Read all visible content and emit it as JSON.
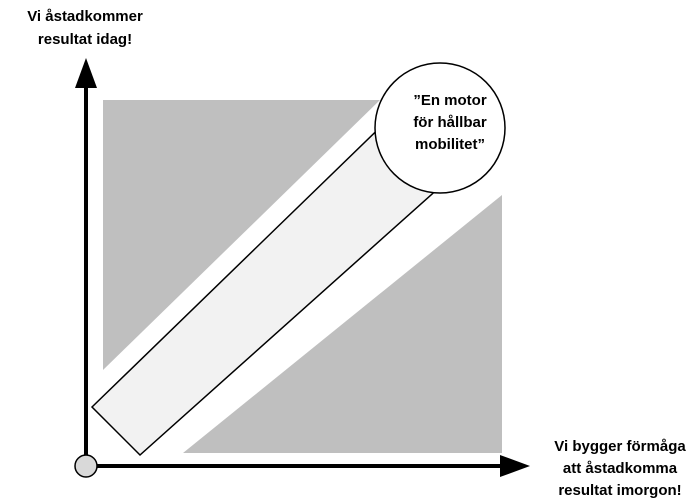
{
  "y_axis_label": {
    "lines": [
      "Vi åstadkommer",
      "resultat idag!"
    ]
  },
  "x_axis_label": {
    "lines": [
      "Vi bygger förmåga",
      "att åstadkomma",
      "resultat imorgon!"
    ]
  },
  "circle": {
    "lines": [
      "”En motor",
      "för hållbar",
      "mobilitet”"
    ]
  }
}
